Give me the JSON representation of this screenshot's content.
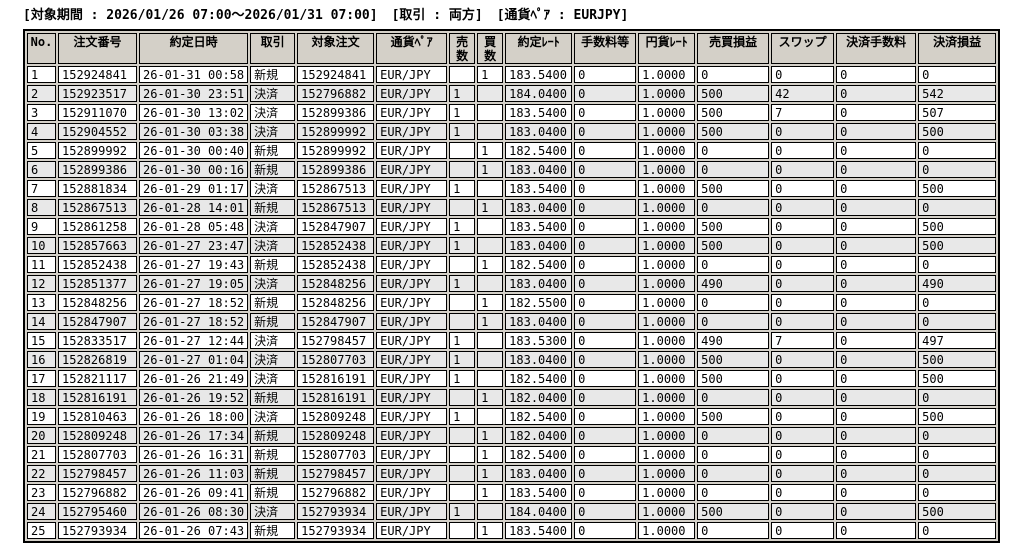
{
  "info_bar": {
    "items": [
      {
        "text": "[対象期間 : 2026/01/26 07:00～2026/01/31 07:00]"
      },
      {
        "text": "[取引 : 両方]"
      },
      {
        "text": "[通貨ﾍﾟｱ : EURJPY]"
      }
    ]
  },
  "table": {
    "columns": [
      {
        "key": "no",
        "label": "No."
      },
      {
        "key": "order_no",
        "label": "注文番号"
      },
      {
        "key": "exec_datetime",
        "label": "約定日時"
      },
      {
        "key": "trade_type",
        "label": "取引"
      },
      {
        "key": "target_order",
        "label": "対象注文"
      },
      {
        "key": "pair",
        "label": "通貨ﾍﾟｱ"
      },
      {
        "key": "sell_qty",
        "label": "売\n数"
      },
      {
        "key": "buy_qty",
        "label": "買\n数"
      },
      {
        "key": "exec_rate",
        "label": "約定ﾚｰﾄ"
      },
      {
        "key": "fee",
        "label": "手数料等"
      },
      {
        "key": "jpy_rate",
        "label": "円貨ﾚｰﾄ"
      },
      {
        "key": "trade_pl",
        "label": "売買損益"
      },
      {
        "key": "swap",
        "label": "スワップ"
      },
      {
        "key": "settle_fee",
        "label": "決済手数料"
      },
      {
        "key": "settle_pl",
        "label": "決済損益"
      }
    ],
    "rows": [
      [
        "1",
        "152924841",
        "26-01-31 00:58",
        "新規",
        "152924841",
        "EUR/JPY",
        "",
        "1",
        "183.5400",
        "0",
        "1.0000",
        "0",
        "0",
        "0",
        "0"
      ],
      [
        "2",
        "152923517",
        "26-01-30 23:51",
        "決済",
        "152796882",
        "EUR/JPY",
        "1",
        "",
        "184.0400",
        "0",
        "1.0000",
        "500",
        "42",
        "0",
        "542"
      ],
      [
        "3",
        "152911070",
        "26-01-30 13:02",
        "決済",
        "152899386",
        "EUR/JPY",
        "1",
        "",
        "183.5400",
        "0",
        "1.0000",
        "500",
        "7",
        "0",
        "507"
      ],
      [
        "4",
        "152904552",
        "26-01-30 03:38",
        "決済",
        "152899992",
        "EUR/JPY",
        "1",
        "",
        "183.0400",
        "0",
        "1.0000",
        "500",
        "0",
        "0",
        "500"
      ],
      [
        "5",
        "152899992",
        "26-01-30 00:40",
        "新規",
        "152899992",
        "EUR/JPY",
        "",
        "1",
        "182.5400",
        "0",
        "1.0000",
        "0",
        "0",
        "0",
        "0"
      ],
      [
        "6",
        "152899386",
        "26-01-30 00:16",
        "新規",
        "152899386",
        "EUR/JPY",
        "",
        "1",
        "183.0400",
        "0",
        "1.0000",
        "0",
        "0",
        "0",
        "0"
      ],
      [
        "7",
        "152881834",
        "26-01-29 01:17",
        "決済",
        "152867513",
        "EUR/JPY",
        "1",
        "",
        "183.5400",
        "0",
        "1.0000",
        "500",
        "0",
        "0",
        "500"
      ],
      [
        "8",
        "152867513",
        "26-01-28 14:01",
        "新規",
        "152867513",
        "EUR/JPY",
        "",
        "1",
        "183.0400",
        "0",
        "1.0000",
        "0",
        "0",
        "0",
        "0"
      ],
      [
        "9",
        "152861258",
        "26-01-28 05:48",
        "決済",
        "152847907",
        "EUR/JPY",
        "1",
        "",
        "183.5400",
        "0",
        "1.0000",
        "500",
        "0",
        "0",
        "500"
      ],
      [
        "10",
        "152857663",
        "26-01-27 23:47",
        "決済",
        "152852438",
        "EUR/JPY",
        "1",
        "",
        "183.0400",
        "0",
        "1.0000",
        "500",
        "0",
        "0",
        "500"
      ],
      [
        "11",
        "152852438",
        "26-01-27 19:43",
        "新規",
        "152852438",
        "EUR/JPY",
        "",
        "1",
        "182.5400",
        "0",
        "1.0000",
        "0",
        "0",
        "0",
        "0"
      ],
      [
        "12",
        "152851377",
        "26-01-27 19:05",
        "決済",
        "152848256",
        "EUR/JPY",
        "1",
        "",
        "183.0400",
        "0",
        "1.0000",
        "490",
        "0",
        "0",
        "490"
      ],
      [
        "13",
        "152848256",
        "26-01-27 18:52",
        "新規",
        "152848256",
        "EUR/JPY",
        "",
        "1",
        "182.5500",
        "0",
        "1.0000",
        "0",
        "0",
        "0",
        "0"
      ],
      [
        "14",
        "152847907",
        "26-01-27 18:52",
        "新規",
        "152847907",
        "EUR/JPY",
        "",
        "1",
        "183.0400",
        "0",
        "1.0000",
        "0",
        "0",
        "0",
        "0"
      ],
      [
        "15",
        "152833517",
        "26-01-27 12:44",
        "決済",
        "152798457",
        "EUR/JPY",
        "1",
        "",
        "183.5300",
        "0",
        "1.0000",
        "490",
        "7",
        "0",
        "497"
      ],
      [
        "16",
        "152826819",
        "26-01-27 01:04",
        "決済",
        "152807703",
        "EUR/JPY",
        "1",
        "",
        "183.0400",
        "0",
        "1.0000",
        "500",
        "0",
        "0",
        "500"
      ],
      [
        "17",
        "152821117",
        "26-01-26 21:49",
        "決済",
        "152816191",
        "EUR/JPY",
        "1",
        "",
        "182.5400",
        "0",
        "1.0000",
        "500",
        "0",
        "0",
        "500"
      ],
      [
        "18",
        "152816191",
        "26-01-26 19:52",
        "新規",
        "152816191",
        "EUR/JPY",
        "",
        "1",
        "182.0400",
        "0",
        "1.0000",
        "0",
        "0",
        "0",
        "0"
      ],
      [
        "19",
        "152810463",
        "26-01-26 18:00",
        "決済",
        "152809248",
        "EUR/JPY",
        "1",
        "",
        "182.5400",
        "0",
        "1.0000",
        "500",
        "0",
        "0",
        "500"
      ],
      [
        "20",
        "152809248",
        "26-01-26 17:34",
        "新規",
        "152809248",
        "EUR/JPY",
        "",
        "1",
        "182.0400",
        "0",
        "1.0000",
        "0",
        "0",
        "0",
        "0"
      ],
      [
        "21",
        "152807703",
        "26-01-26 16:31",
        "新規",
        "152807703",
        "EUR/JPY",
        "",
        "1",
        "182.5400",
        "0",
        "1.0000",
        "0",
        "0",
        "0",
        "0"
      ],
      [
        "22",
        "152798457",
        "26-01-26 11:03",
        "新規",
        "152798457",
        "EUR/JPY",
        "",
        "1",
        "183.0400",
        "0",
        "1.0000",
        "0",
        "0",
        "0",
        "0"
      ],
      [
        "23",
        "152796882",
        "26-01-26 09:41",
        "新規",
        "152796882",
        "EUR/JPY",
        "",
        "1",
        "183.5400",
        "0",
        "1.0000",
        "0",
        "0",
        "0",
        "0"
      ],
      [
        "24",
        "152795460",
        "26-01-26 08:30",
        "決済",
        "152793934",
        "EUR/JPY",
        "1",
        "",
        "184.0400",
        "0",
        "1.0000",
        "500",
        "0",
        "0",
        "500"
      ],
      [
        "25",
        "152793934",
        "26-01-26 07:43",
        "新規",
        "152793934",
        "EUR/JPY",
        "",
        "1",
        "183.5400",
        "0",
        "1.0000",
        "0",
        "0",
        "0",
        "0"
      ]
    ]
  },
  "colors": {
    "header_bg": "#d4d0c8",
    "row_bg": "#ffffff",
    "row_alt_bg": "#e8e8e8",
    "border": "#000000"
  }
}
